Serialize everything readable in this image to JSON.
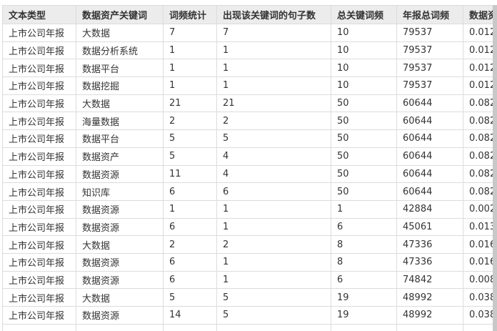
{
  "table": {
    "columns": [
      "文本类型",
      "数据资产关键词",
      "词频统计",
      "出现该关键词的句子数",
      "总关键词频",
      "年报总词频",
      "数据资"
    ],
    "rows": [
      [
        "上市公司年报",
        "大数据",
        "7",
        "7",
        "10",
        "79537",
        "0.012"
      ],
      [
        "上市公司年报",
        "数据分析系统",
        "1",
        "1",
        "10",
        "79537",
        "0.012"
      ],
      [
        "上市公司年报",
        "数据平台",
        "1",
        "1",
        "10",
        "79537",
        "0.012"
      ],
      [
        "上市公司年报",
        "数据挖掘",
        "1",
        "1",
        "10",
        "79537",
        "0.012"
      ],
      [
        "上市公司年报",
        "大数据",
        "21",
        "21",
        "50",
        "60644",
        "0.082"
      ],
      [
        "上市公司年报",
        "海量数据",
        "2",
        "2",
        "50",
        "60644",
        "0.082"
      ],
      [
        "上市公司年报",
        "数据平台",
        "5",
        "5",
        "50",
        "60644",
        "0.082"
      ],
      [
        "上市公司年报",
        "数据资产",
        "5",
        "4",
        "50",
        "60644",
        "0.082"
      ],
      [
        "上市公司年报",
        "数据资源",
        "11",
        "4",
        "50",
        "60644",
        "0.082"
      ],
      [
        "上市公司年报",
        "知识库",
        "6",
        "6",
        "50",
        "60644",
        "0.082"
      ],
      [
        "上市公司年报",
        "数据资源",
        "1",
        "1",
        "1",
        "42884",
        "0.002"
      ],
      [
        "上市公司年报",
        "数据资源",
        "6",
        "1",
        "6",
        "45061",
        "0.013"
      ],
      [
        "上市公司年报",
        "大数据",
        "2",
        "2",
        "8",
        "47336",
        "0.016"
      ],
      [
        "上市公司年报",
        "数据资源",
        "6",
        "1",
        "8",
        "47336",
        "0.016"
      ],
      [
        "上市公司年报",
        "数据资源",
        "6",
        "1",
        "6",
        "74842",
        "0.008"
      ],
      [
        "上市公司年报",
        "大数据",
        "5",
        "5",
        "19",
        "48992",
        "0.038"
      ],
      [
        "上市公司年报",
        "数据资源",
        "14",
        "5",
        "19",
        "48992",
        "0.038"
      ],
      [
        "",
        "",
        "",
        "",
        "",
        "",
        ""
      ]
    ]
  }
}
